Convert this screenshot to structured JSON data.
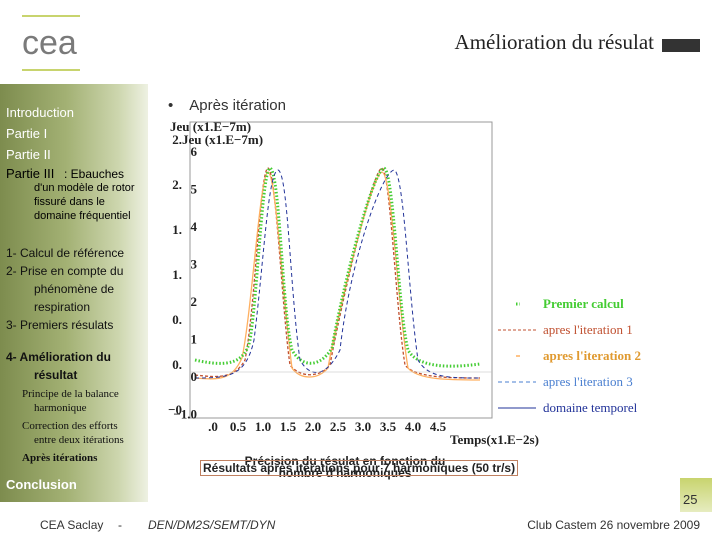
{
  "header": {
    "logo": "cea",
    "title": "Amélioration du résulat"
  },
  "sidebar": {
    "sections": [
      "Introduction",
      "Partie I",
      "Partie II"
    ],
    "part3": {
      "label": "Partie III",
      "text": " : Ebauches",
      "detail": [
        "d'un modèle de rotor",
        "fissuré dans le",
        "domaine fréquentiel"
      ]
    },
    "steps": [
      [
        "1- Calcul de référence"
      ],
      [
        "2- Prise en compte du",
        "phénomène de",
        "respiration"
      ],
      [
        "3- Premiers résulats"
      ],
      [
        "4- Amélioration du",
        "résultat"
      ]
    ],
    "substeps": [
      [
        "Principe de la balance",
        "harmonique"
      ],
      [
        "Correction des efforts",
        "entre deux itérations"
      ],
      [
        "Après itérations"
      ]
    ],
    "conclusion": "Conclusion"
  },
  "content": {
    "bullet": "Après itération",
    "plot": {
      "y_titles": [
        "Jeu (x1.E−7m)",
        "Jeu (x1.E−7m)"
      ],
      "y_ticks_a": [
        "2.",
        "2.",
        "1.",
        "1.",
        "0.",
        "0.",
        "−0"
      ],
      "y_ticks_b": [
        "6",
        "5",
        "4",
        "3",
        "2",
        "1",
        "0",
        "−1.0"
      ],
      "x_ticks": [
        ".0",
        "0.5",
        "1.0",
        "1.5",
        "2.0",
        "2.5",
        "3.0",
        "3.5",
        "4.0",
        "4.5"
      ],
      "x_title": "Temps(x1.E−2s)",
      "legend": [
        "Premier calcul",
        "apres l'iteration 1",
        "apres l'iteration 2",
        "apres l'iteration 3",
        "domaine temporel"
      ]
    },
    "captions": [
      "Précision du résulat en fonction du nombre d'harmoniques",
      "Résultats après itérations pour 7 harmoniques (50 tr/s)"
    ]
  },
  "footer": {
    "left": "CEA Saclay",
    "separator": "-",
    "unit": "DEN/DM2S/SEMT/DYN",
    "event": "Club Castem 26 novembre 2009",
    "page": "25"
  }
}
